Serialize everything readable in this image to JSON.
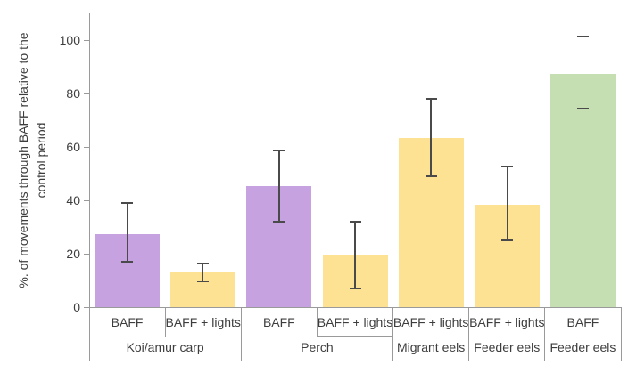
{
  "chart_data": {
    "type": "bar",
    "title": "",
    "ylabel": "%. of movements through BAFF relative to the control period",
    "ylabel_lines": [
      "%. of movements through BAFF relative to the",
      "control period"
    ],
    "ylim": [
      0,
      110
    ],
    "yticks": [
      0,
      20,
      40,
      60,
      80,
      100
    ],
    "grid": false,
    "legend": false,
    "error_bars": true,
    "colors": {
      "purple": "#c6a3e0",
      "yellow": "#fde294",
      "green": "#c5dfb2",
      "error": "#4a4a4a",
      "axis": "#9a9a9a",
      "text": "#3d3d3d"
    },
    "bars": [
      {
        "sub_label": "BAFF",
        "group": "Koi/amur carp",
        "value": 27.5,
        "err_low": 17,
        "err_high": 39,
        "color": "purple"
      },
      {
        "sub_label": "BAFF + lights",
        "group": "Koi/amur carp",
        "value": 13,
        "err_low": 9.5,
        "err_high": 16.5,
        "color": "yellow"
      },
      {
        "sub_label": "BAFF",
        "group": "Perch",
        "value": 45.5,
        "err_low": 32,
        "err_high": 58.5,
        "color": "purple"
      },
      {
        "sub_label": "BAFF + lights",
        "group": "Perch",
        "value": 19.5,
        "err_low": 7,
        "err_high": 32,
        "color": "yellow"
      },
      {
        "sub_label": "BAFF + lights",
        "group": "Migrant eels",
        "value": 63.5,
        "err_low": 49,
        "err_high": 78,
        "color": "yellow"
      },
      {
        "sub_label": "BAFF + lights",
        "group": "Feeder eels",
        "value": 38.5,
        "err_low": 25,
        "err_high": 52.5,
        "color": "yellow"
      },
      {
        "sub_label": "BAFF",
        "group": "Feeder eels",
        "value": 87.5,
        "err_low": 74.5,
        "err_high": 101.5,
        "color": "green"
      }
    ],
    "groups": [
      {
        "label": "Koi/amur carp",
        "span": 2
      },
      {
        "label": "Perch",
        "span": 2
      },
      {
        "label": "Migrant eels",
        "span": 1
      },
      {
        "label": "Feeder eels",
        "span": 1
      },
      {
        "label": "Feeder eels",
        "span": 1
      }
    ]
  }
}
